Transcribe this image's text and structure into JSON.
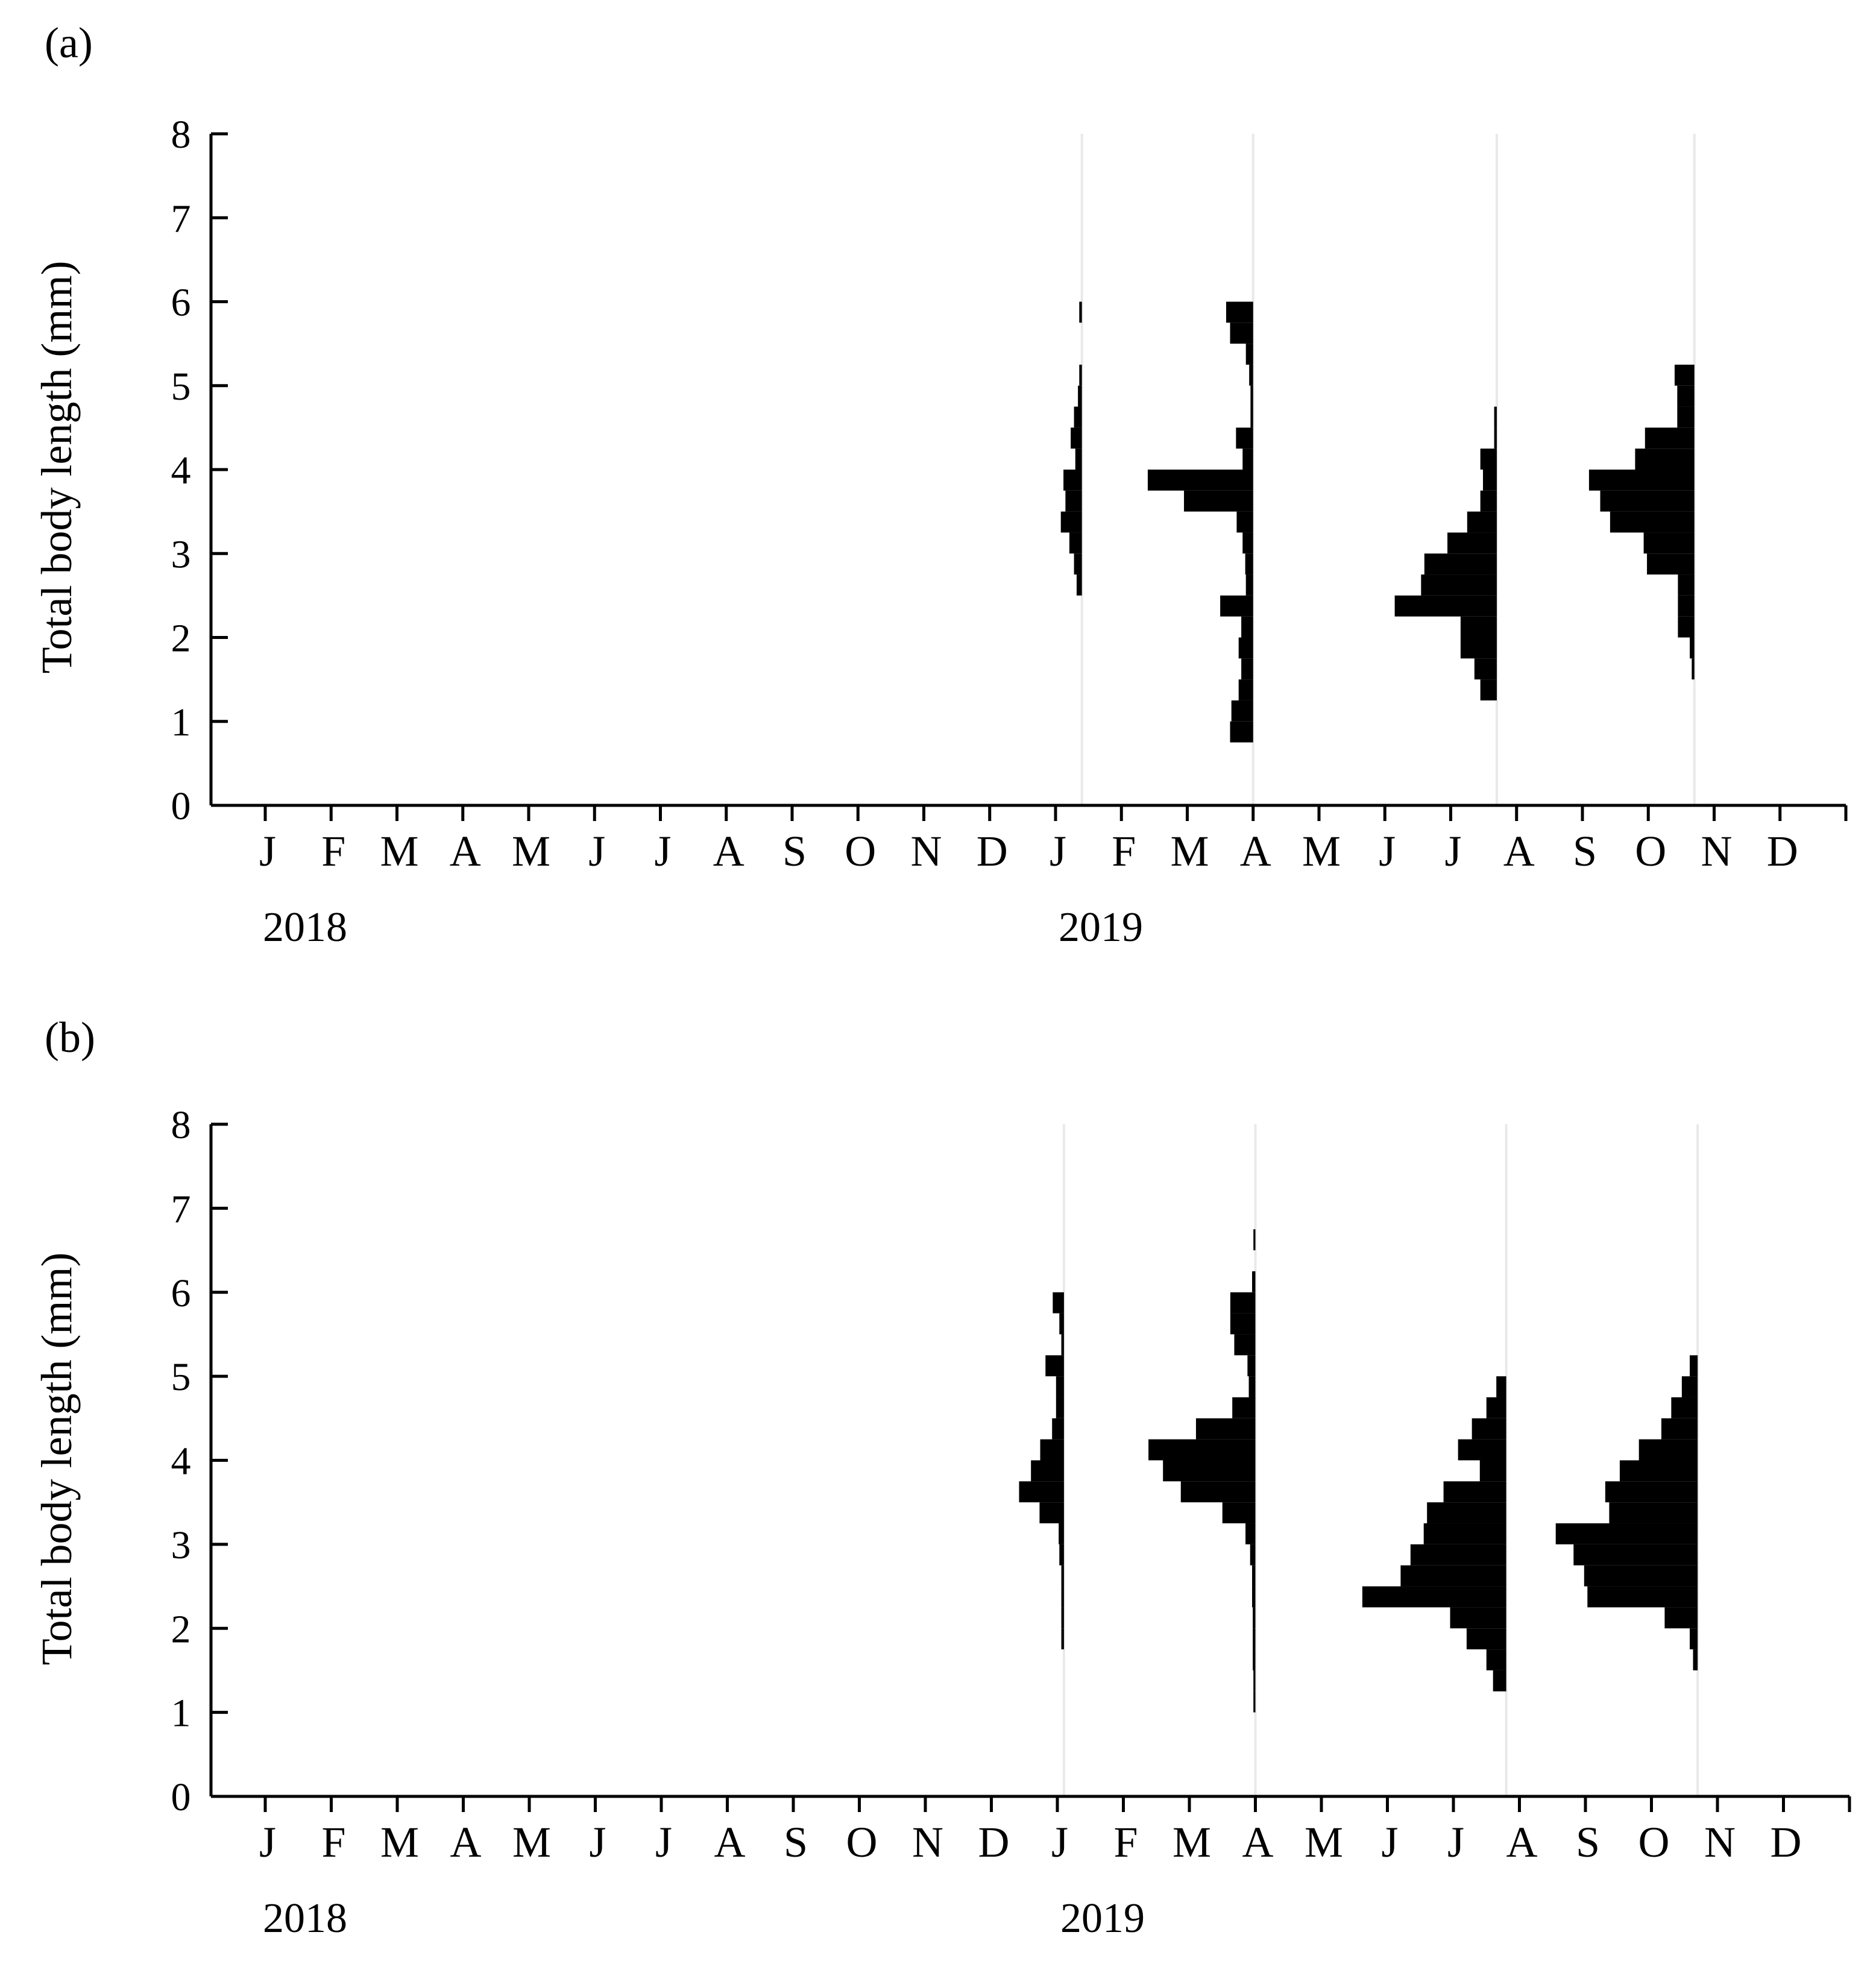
{
  "chart_data": [
    {
      "type": "bar",
      "panel_label": "(a)",
      "ylabel": "Total body length (mm)",
      "ylim": [
        0,
        8
      ],
      "y_ticks": [
        "0",
        "1",
        "2",
        "3",
        "4",
        "5",
        "6",
        "7",
        "8"
      ],
      "x_months": [
        "J",
        "F",
        "M",
        "A",
        "M",
        "J",
        "J",
        "A",
        "S",
        "O",
        "N",
        "D",
        "J",
        "F",
        "M",
        "A",
        "M",
        "J",
        "J",
        "A",
        "S",
        "O",
        "N",
        "D"
      ],
      "x_years": [
        {
          "label": "2018",
          "month_index": 0
        },
        {
          "label": "2019",
          "month_index": 12
        }
      ],
      "grid": false,
      "series": [
        {
          "sample_month_index": 12.4,
          "bins": [
            [
              2.5,
              0.08
            ],
            [
              2.75,
              0.12
            ],
            [
              3.0,
              0.19
            ],
            [
              3.25,
              0.32
            ],
            [
              3.5,
              0.25
            ],
            [
              3.75,
              0.28
            ],
            [
              4.0,
              0.1
            ],
            [
              4.25,
              0.17
            ],
            [
              4.5,
              0.12
            ],
            [
              4.75,
              0.06
            ],
            [
              5.0,
              0.04
            ],
            [
              5.75,
              0.04
            ]
          ]
        },
        {
          "sample_month_index": 15.0,
          "bins": [
            [
              0.75,
              0.35
            ],
            [
              1.0,
              0.33
            ],
            [
              1.25,
              0.22
            ],
            [
              1.5,
              0.18
            ],
            [
              1.75,
              0.22
            ],
            [
              2.0,
              0.18
            ],
            [
              2.25,
              0.5
            ],
            [
              2.5,
              0.11
            ],
            [
              2.75,
              0.12
            ],
            [
              3.0,
              0.16
            ],
            [
              3.25,
              0.25
            ],
            [
              3.5,
              1.05
            ],
            [
              3.75,
              1.6
            ],
            [
              4.0,
              0.16
            ],
            [
              4.25,
              0.26
            ],
            [
              4.5,
              0.04
            ],
            [
              4.75,
              0.04
            ],
            [
              5.0,
              0.06
            ],
            [
              5.25,
              0.11
            ],
            [
              5.5,
              0.35
            ],
            [
              5.75,
              0.41
            ]
          ]
        },
        {
          "sample_month_index": 18.7,
          "bins": [
            [
              1.25,
              0.25
            ],
            [
              1.5,
              0.34
            ],
            [
              1.75,
              0.55
            ],
            [
              2.0,
              0.55
            ],
            [
              2.25,
              1.55
            ],
            [
              2.5,
              1.15
            ],
            [
              2.75,
              1.1
            ],
            [
              3.0,
              0.75
            ],
            [
              3.25,
              0.45
            ],
            [
              3.5,
              0.25
            ],
            [
              3.75,
              0.21
            ],
            [
              4.0,
              0.25
            ],
            [
              4.25,
              0.04
            ],
            [
              4.5,
              0.04
            ]
          ]
        },
        {
          "sample_month_index": 21.7,
          "bins": [
            [
              1.5,
              0.04
            ],
            [
              1.75,
              0.07
            ],
            [
              2.0,
              0.25
            ],
            [
              2.25,
              0.25
            ],
            [
              2.5,
              0.25
            ],
            [
              2.75,
              0.72
            ],
            [
              3.0,
              0.77
            ],
            [
              3.25,
              1.28
            ],
            [
              3.5,
              1.43
            ],
            [
              3.75,
              1.6
            ],
            [
              4.0,
              0.9
            ],
            [
              4.25,
              0.75
            ],
            [
              4.5,
              0.26
            ],
            [
              4.75,
              0.26
            ],
            [
              5.0,
              0.3
            ]
          ]
        }
      ]
    },
    {
      "type": "bar",
      "panel_label": "(b)",
      "ylabel": "Total body length (mm)",
      "ylim": [
        0,
        8
      ],
      "y_ticks": [
        "0",
        "1",
        "2",
        "3",
        "4",
        "5",
        "6",
        "7",
        "8"
      ],
      "x_months": [
        "J",
        "F",
        "M",
        "A",
        "M",
        "J",
        "J",
        "A",
        "S",
        "O",
        "N",
        "D",
        "J",
        "F",
        "M",
        "A",
        "M",
        "J",
        "J",
        "A",
        "S",
        "O",
        "N",
        "D"
      ],
      "x_years": [
        {
          "label": "2018",
          "month_index": 0
        },
        {
          "label": "2019",
          "month_index": 12
        }
      ],
      "grid": false,
      "series": [
        {
          "sample_month_index": 12.1,
          "bins": [
            [
              1.75,
              0.04
            ],
            [
              2.0,
              0.04
            ],
            [
              2.25,
              0.04
            ],
            [
              2.5,
              0.04
            ],
            [
              2.75,
              0.07
            ],
            [
              3.0,
              0.08
            ],
            [
              3.25,
              0.37
            ],
            [
              3.5,
              0.68
            ],
            [
              3.75,
              0.5
            ],
            [
              4.0,
              0.36
            ],
            [
              4.25,
              0.18
            ],
            [
              4.5,
              0.12
            ],
            [
              4.75,
              0.12
            ],
            [
              5.0,
              0.28
            ],
            [
              5.25,
              0.04
            ],
            [
              5.5,
              0.07
            ],
            [
              5.75,
              0.17
            ]
          ]
        },
        {
          "sample_month_index": 15.0,
          "bins": [
            [
              1.0,
              0.03
            ],
            [
              1.25,
              0.03
            ],
            [
              1.5,
              0.04
            ],
            [
              1.75,
              0.04
            ],
            [
              2.0,
              0.04
            ],
            [
              2.25,
              0.05
            ],
            [
              2.5,
              0.05
            ],
            [
              2.75,
              0.08
            ],
            [
              3.0,
              0.15
            ],
            [
              3.25,
              0.5
            ],
            [
              3.5,
              1.13
            ],
            [
              3.75,
              1.4
            ],
            [
              4.0,
              1.62
            ],
            [
              4.25,
              0.9
            ],
            [
              4.5,
              0.35
            ],
            [
              4.75,
              0.1
            ],
            [
              5.0,
              0.12
            ],
            [
              5.25,
              0.32
            ],
            [
              5.5,
              0.38
            ],
            [
              5.75,
              0.38
            ],
            [
              6.0,
              0.05
            ],
            [
              6.5,
              0.03
            ]
          ]
        },
        {
          "sample_month_index": 18.8,
          "bins": [
            [
              1.25,
              0.2
            ],
            [
              1.5,
              0.3
            ],
            [
              1.75,
              0.6
            ],
            [
              2.0,
              0.85
            ],
            [
              2.25,
              2.18
            ],
            [
              2.5,
              1.6
            ],
            [
              2.75,
              1.45
            ],
            [
              3.0,
              1.25
            ],
            [
              3.25,
              1.2
            ],
            [
              3.5,
              0.95
            ],
            [
              3.75,
              0.4
            ],
            [
              4.0,
              0.73
            ],
            [
              4.25,
              0.52
            ],
            [
              4.5,
              0.3
            ],
            [
              4.75,
              0.15
            ]
          ]
        },
        {
          "sample_month_index": 21.7,
          "bins": [
            [
              1.5,
              0.07
            ],
            [
              1.75,
              0.12
            ],
            [
              2.0,
              0.5
            ],
            [
              2.25,
              1.67
            ],
            [
              2.5,
              1.72
            ],
            [
              2.75,
              1.88
            ],
            [
              3.0,
              2.15
            ],
            [
              3.25,
              1.34
            ],
            [
              3.5,
              1.4
            ],
            [
              3.75,
              1.18
            ],
            [
              4.0,
              0.89
            ],
            [
              4.25,
              0.55
            ],
            [
              4.5,
              0.4
            ],
            [
              4.75,
              0.24
            ],
            [
              5.0,
              0.12
            ]
          ]
        }
      ]
    }
  ]
}
